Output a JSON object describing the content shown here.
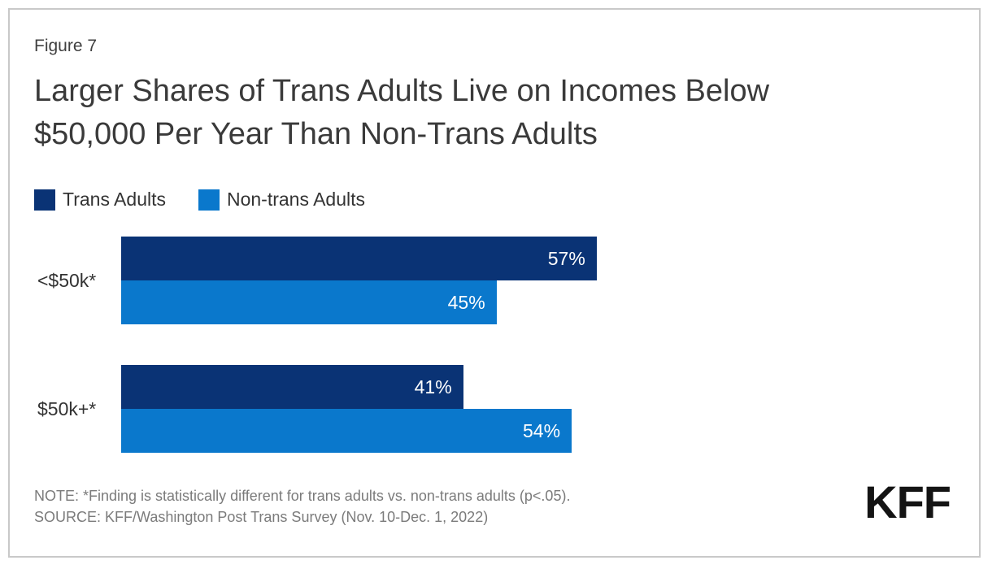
{
  "figure_label": "Figure 7",
  "title": "Larger Shares of Trans Adults Live on Incomes Below $50,000 Per Year Than Non-Trans Adults",
  "chart_data": {
    "type": "bar",
    "orientation": "horizontal",
    "title": "Larger Shares of Trans Adults Live on Incomes Below $50,000 Per Year Than Non-Trans Adults",
    "categories": [
      "<$50k*",
      "$50k+*"
    ],
    "series": [
      {
        "name": "Trans Adults",
        "color": "#0a3375",
        "values": [
          57,
          41
        ]
      },
      {
        "name": "Non-trans Adults",
        "color": "#0a78cc",
        "values": [
          45,
          54
        ]
      }
    ],
    "value_suffix": "%",
    "xlim": [
      0,
      100
    ],
    "grid": false,
    "legend_position": "top-left",
    "value_labels": "inside-end",
    "value_label_color": "#ffffff"
  },
  "note": "NOTE: *Finding is statistically different for trans adults vs. non-trans adults (p<.05).",
  "source": "SOURCE: KFF/Washington Post Trans Survey (Nov. 10-Dec. 1, 2022)",
  "logo_text": "KFF"
}
